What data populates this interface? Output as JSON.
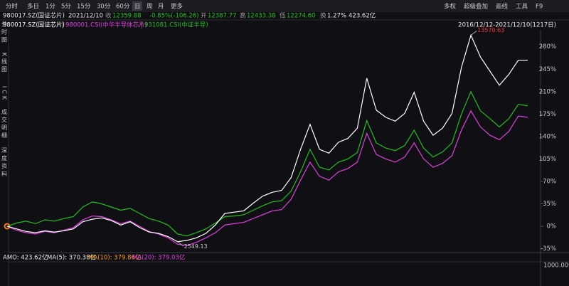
{
  "toolbar": {
    "left": [
      "分时",
      "多日",
      "1分",
      "5分",
      "15分",
      "30分",
      "60分",
      "日",
      "周",
      "月",
      "更多"
    ],
    "right": [
      "多权",
      "超级叠加",
      "画线",
      "工具",
      "F9"
    ]
  },
  "quote": {
    "name": "980017.SZ(国证芯片)",
    "date": "2021/12/10",
    "close_label": "收",
    "close": "12359.88",
    "change": "-0.85%(-106.26)",
    "open_label": "开",
    "open": "12387.77",
    "high_label": "高",
    "high": "12433.38",
    "low_label": "低",
    "low": "12274.60",
    "turnover_label": "换",
    "turnover": "1.27%",
    "amount": "423.62亿"
  },
  "sidebar": [
    "分时图",
    "K线图",
    "ICK",
    "成交明细",
    "深度资料"
  ],
  "range_label": "2016/12/12-2021/12/10(1217日)",
  "chart_data": {
    "type": "line",
    "series": [
      {
        "name": "980017.SZ(国证芯片)",
        "color": "#ffffff",
        "values": [
          0,
          -4,
          -8,
          -10,
          -7,
          -9,
          -7,
          -4,
          7,
          11,
          13,
          9,
          2,
          7,
          -2,
          -9,
          -11,
          -16,
          -24,
          -22,
          -18,
          -11,
          2,
          20,
          22,
          24,
          36,
          47,
          53,
          56,
          76,
          120,
          159,
          120,
          114,
          131,
          137,
          153,
          231,
          181,
          170,
          164,
          176,
          209,
          164,
          142,
          153,
          176,
          248,
          298,
          264,
          242,
          220,
          237,
          259,
          259
        ]
      },
      {
        "name": "980001.CSI(中华半导体芯片)",
        "color": "#e040e0",
        "values": [
          0,
          -6,
          -10,
          -12,
          -8,
          -10,
          -6,
          -2,
          10,
          16,
          15,
          10,
          4,
          8,
          0,
          -8,
          -12,
          -18,
          -28,
          -30,
          -25,
          -18,
          -10,
          2,
          4,
          6,
          12,
          18,
          24,
          26,
          42,
          72,
          100,
          78,
          72,
          85,
          90,
          100,
          145,
          112,
          105,
          100,
          108,
          130,
          105,
          92,
          98,
          110,
          150,
          180,
          155,
          142,
          135,
          148,
          172,
          170
        ]
      },
      {
        "name": "931081.CSI(中证半导)",
        "color": "#1fc01f",
        "values": [
          0,
          5,
          8,
          4,
          10,
          8,
          12,
          15,
          30,
          38,
          35,
          30,
          25,
          28,
          20,
          12,
          8,
          2,
          -12,
          -15,
          -10,
          -4,
          5,
          15,
          16,
          18,
          25,
          32,
          38,
          40,
          55,
          85,
          120,
          92,
          88,
          100,
          105,
          115,
          165,
          130,
          122,
          118,
          126,
          150,
          122,
          108,
          116,
          130,
          175,
          210,
          180,
          168,
          155,
          168,
          190,
          188
        ]
      }
    ],
    "ylim": [
      -41,
      303
    ],
    "yticks": [
      {
        "value": 280,
        "label": "280%"
      },
      {
        "value": 245,
        "label": "245%"
      },
      {
        "value": 210,
        "label": "210%"
      },
      {
        "value": 175,
        "label": "175%"
      },
      {
        "value": 140,
        "label": "140%"
      },
      {
        "value": 105,
        "label": "105%"
      },
      {
        "value": 70,
        "label": "70%"
      },
      {
        "value": 35,
        "label": "35%"
      },
      {
        "value": 0,
        "label": "0%"
      },
      {
        "value": -35,
        "label": "-35%"
      }
    ],
    "annotations": {
      "high": "13570.63",
      "low": "2549.13"
    }
  },
  "amo": {
    "amo": "AMO: 423.62亿",
    "ma5": "MA(5): 370.38亿",
    "ma10": "MA(10): 379.86亿",
    "ma20": "MA(20): 379.03亿",
    "axis": "1000.00亿"
  }
}
